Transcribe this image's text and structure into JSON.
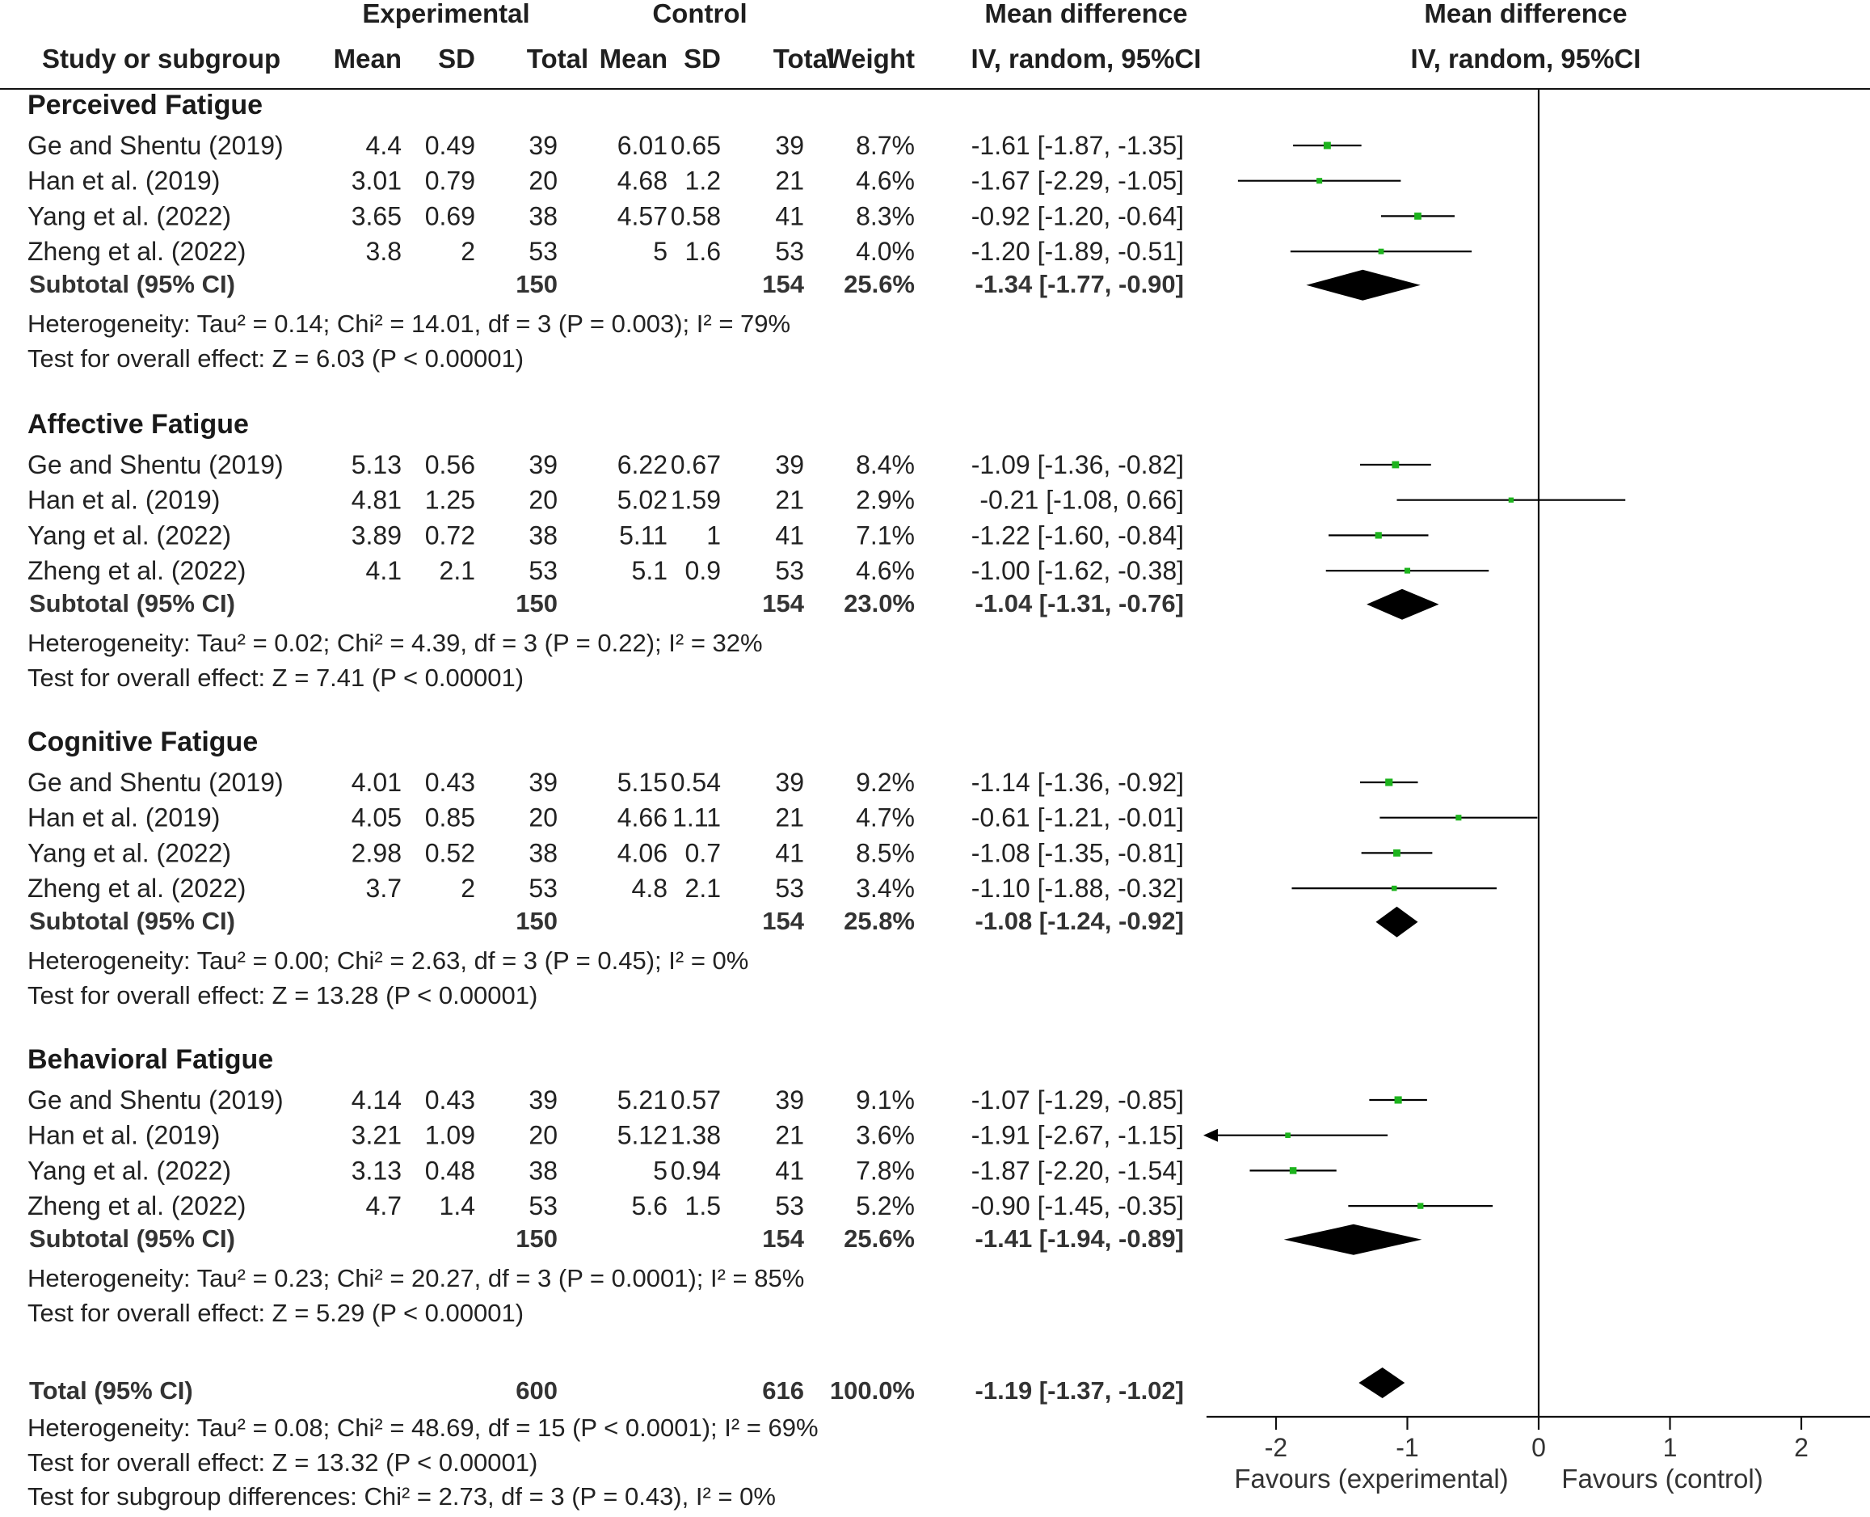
{
  "header": {
    "experimental": "Experimental",
    "control": "Control",
    "mean_difference": "Mean difference",
    "study_or_subgroup": "Study or subgroup",
    "mean": "Mean",
    "sd": "SD",
    "total": "Total",
    "weight": "Weight",
    "method": "IV, random, 95%CI"
  },
  "chart_data": {
    "type": "forest",
    "x_axis": {
      "ticks": [
        -2,
        -1,
        0,
        1,
        2
      ],
      "range": [
        -2.5,
        2.5
      ]
    },
    "favours_left": "Favours (experimental)",
    "favours_right": "Favours (control)",
    "groups": [
      {
        "name": "Perceived Fatigue",
        "studies": [
          {
            "study": "Ge and Shentu (2019)",
            "exp_mean": "4.4",
            "exp_sd": "0.49",
            "exp_total": "39",
            "ctl_mean": "6.01",
            "ctl_sd": "0.65",
            "ctl_total": "39",
            "weight": "8.7%",
            "md_text": "-1.61 [-1.87, -1.35]",
            "md": -1.61,
            "lo": -1.87,
            "hi": -1.35
          },
          {
            "study": "Han et al. (2019)",
            "exp_mean": "3.01",
            "exp_sd": "0.79",
            "exp_total": "20",
            "ctl_mean": "4.68",
            "ctl_sd": "1.2",
            "ctl_total": "21",
            "weight": "4.6%",
            "md_text": "-1.67 [-2.29, -1.05]",
            "md": -1.67,
            "lo": -2.29,
            "hi": -1.05
          },
          {
            "study": "Yang et al. (2022)",
            "exp_mean": "3.65",
            "exp_sd": "0.69",
            "exp_total": "38",
            "ctl_mean": "4.57",
            "ctl_sd": "0.58",
            "ctl_total": "41",
            "weight": "8.3%",
            "md_text": "-0.92 [-1.20, -0.64]",
            "md": -0.92,
            "lo": -1.2,
            "hi": -0.64
          },
          {
            "study": "Zheng et al. (2022)",
            "exp_mean": "3.8",
            "exp_sd": "2",
            "exp_total": "53",
            "ctl_mean": "5",
            "ctl_sd": "1.6",
            "ctl_total": "53",
            "weight": "4.0%",
            "md_text": "-1.20 [-1.89, -0.51]",
            "md": -1.2,
            "lo": -1.89,
            "hi": -0.51
          }
        ],
        "subtotal": {
          "label": "Subtotal (95% CI)",
          "exp_total": "150",
          "ctl_total": "154",
          "weight": "25.6%",
          "md_text": "-1.34 [-1.77, -0.90]",
          "md": -1.34,
          "lo": -1.77,
          "hi": -0.9
        },
        "heterogeneity": "Heterogeneity: Tau² = 0.14; Chi² = 14.01, df = 3 (P = 0.003); I² = 79%",
        "overall": "Test for overall effect: Z = 6.03 (P < 0.00001)"
      },
      {
        "name": "Affective Fatigue",
        "studies": [
          {
            "study": "Ge and Shentu (2019)",
            "exp_mean": "5.13",
            "exp_sd": "0.56",
            "exp_total": "39",
            "ctl_mean": "6.22",
            "ctl_sd": "0.67",
            "ctl_total": "39",
            "weight": "8.4%",
            "md_text": "-1.09 [-1.36, -0.82]",
            "md": -1.09,
            "lo": -1.36,
            "hi": -0.82
          },
          {
            "study": "Han et al. (2019)",
            "exp_mean": "4.81",
            "exp_sd": "1.25",
            "exp_total": "20",
            "ctl_mean": "5.02",
            "ctl_sd": "1.59",
            "ctl_total": "21",
            "weight": "2.9%",
            "md_text": "-0.21 [-1.08, 0.66]",
            "md": -0.21,
            "lo": -1.08,
            "hi": 0.66
          },
          {
            "study": "Yang et al. (2022)",
            "exp_mean": "3.89",
            "exp_sd": "0.72",
            "exp_total": "38",
            "ctl_mean": "5.11",
            "ctl_sd": "1",
            "ctl_total": "41",
            "weight": "7.1%",
            "md_text": "-1.22 [-1.60, -0.84]",
            "md": -1.22,
            "lo": -1.6,
            "hi": -0.84
          },
          {
            "study": "Zheng et al. (2022)",
            "exp_mean": "4.1",
            "exp_sd": "2.1",
            "exp_total": "53",
            "ctl_mean": "5.1",
            "ctl_sd": "0.9",
            "ctl_total": "53",
            "weight": "4.6%",
            "md_text": "-1.00 [-1.62, -0.38]",
            "md": -1.0,
            "lo": -1.62,
            "hi": -0.38
          }
        ],
        "subtotal": {
          "label": "Subtotal (95% CI)",
          "exp_total": "150",
          "ctl_total": "154",
          "weight": "23.0%",
          "md_text": "-1.04 [-1.31, -0.76]",
          "md": -1.04,
          "lo": -1.31,
          "hi": -0.76
        },
        "heterogeneity": "Heterogeneity: Tau² = 0.02; Chi² = 4.39, df = 3 (P = 0.22); I² = 32%",
        "overall": "Test for overall effect: Z = 7.41 (P < 0.00001)"
      },
      {
        "name": "Cognitive Fatigue",
        "studies": [
          {
            "study": "Ge and Shentu (2019)",
            "exp_mean": "4.01",
            "exp_sd": "0.43",
            "exp_total": "39",
            "ctl_mean": "5.15",
            "ctl_sd": "0.54",
            "ctl_total": "39",
            "weight": "9.2%",
            "md_text": "-1.14 [-1.36, -0.92]",
            "md": -1.14,
            "lo": -1.36,
            "hi": -0.92
          },
          {
            "study": "Han et al. (2019)",
            "exp_mean": "4.05",
            "exp_sd": "0.85",
            "exp_total": "20",
            "ctl_mean": "4.66",
            "ctl_sd": "1.11",
            "ctl_total": "21",
            "weight": "4.7%",
            "md_text": "-0.61 [-1.21, -0.01]",
            "md": -0.61,
            "lo": -1.21,
            "hi": -0.01
          },
          {
            "study": "Yang et al. (2022)",
            "exp_mean": "2.98",
            "exp_sd": "0.52",
            "exp_total": "38",
            "ctl_mean": "4.06",
            "ctl_sd": "0.7",
            "ctl_total": "41",
            "weight": "8.5%",
            "md_text": "-1.08 [-1.35, -0.81]",
            "md": -1.08,
            "lo": -1.35,
            "hi": -0.81
          },
          {
            "study": "Zheng et al. (2022)",
            "exp_mean": "3.7",
            "exp_sd": "2",
            "exp_total": "53",
            "ctl_mean": "4.8",
            "ctl_sd": "2.1",
            "ctl_total": "53",
            "weight": "3.4%",
            "md_text": "-1.10 [-1.88, -0.32]",
            "md": -1.1,
            "lo": -1.88,
            "hi": -0.32
          }
        ],
        "subtotal": {
          "label": "Subtotal (95% CI)",
          "exp_total": "150",
          "ctl_total": "154",
          "weight": "25.8%",
          "md_text": "-1.08 [-1.24, -0.92]",
          "md": -1.08,
          "lo": -1.24,
          "hi": -0.92
        },
        "heterogeneity": "Heterogeneity: Tau² = 0.00; Chi² = 2.63, df = 3 (P = 0.45); I² = 0%",
        "overall": "Test for overall effect: Z = 13.28 (P < 0.00001)"
      },
      {
        "name": "Behavioral Fatigue",
        "studies": [
          {
            "study": "Ge and Shentu (2019)",
            "exp_mean": "4.14",
            "exp_sd": "0.43",
            "exp_total": "39",
            "ctl_mean": "5.21",
            "ctl_sd": "0.57",
            "ctl_total": "39",
            "weight": "9.1%",
            "md_text": "-1.07 [-1.29, -0.85]",
            "md": -1.07,
            "lo": -1.29,
            "hi": -0.85
          },
          {
            "study": "Han et al. (2019)",
            "exp_mean": "3.21",
            "exp_sd": "1.09",
            "exp_total": "20",
            "ctl_mean": "5.12",
            "ctl_sd": "1.38",
            "ctl_total": "21",
            "weight": "3.6%",
            "md_text": "-1.91 [-2.67, -1.15]",
            "md": -1.91,
            "lo": -2.67,
            "hi": -1.15
          },
          {
            "study": "Yang et al. (2022)",
            "exp_mean": "3.13",
            "exp_sd": "0.48",
            "exp_total": "38",
            "ctl_mean": "5",
            "ctl_sd": "0.94",
            "ctl_total": "41",
            "weight": "7.8%",
            "md_text": "-1.87 [-2.20, -1.54]",
            "md": -1.87,
            "lo": -2.2,
            "hi": -1.54
          },
          {
            "study": "Zheng et al. (2022)",
            "exp_mean": "4.7",
            "exp_sd": "1.4",
            "exp_total": "53",
            "ctl_mean": "5.6",
            "ctl_sd": "1.5",
            "ctl_total": "53",
            "weight": "5.2%",
            "md_text": "-0.90 [-1.45, -0.35]",
            "md": -0.9,
            "lo": -1.45,
            "hi": -0.35
          }
        ],
        "subtotal": {
          "label": "Subtotal (95% CI)",
          "exp_total": "150",
          "ctl_total": "154",
          "weight": "25.6%",
          "md_text": "-1.41 [-1.94, -0.89]",
          "md": -1.41,
          "lo": -1.94,
          "hi": -0.89
        },
        "heterogeneity": "Heterogeneity: Tau² = 0.23; Chi² = 20.27, df = 3 (P = 0.0001); I² = 85%",
        "overall": "Test for overall effect: Z = 5.29 (P < 0.00001)"
      }
    ],
    "total": {
      "label": "Total (95% CI)",
      "exp_total": "600",
      "ctl_total": "616",
      "weight": "100.0%",
      "md_text": "-1.19 [-1.37, -1.02]",
      "md": -1.19,
      "lo": -1.37,
      "hi": -1.02,
      "heterogeneity": "Heterogeneity: Tau² = 0.08; Chi² = 48.69, df = 15 (P < 0.0001); I² = 69%",
      "overall": "Test for overall effect: Z = 13.32 (P < 0.00001)",
      "subgroup": "Test for subgroup differences: Chi² = 2.73, df = 3 (P = 0.43), I² = 0%"
    },
    "colors": {
      "point": "#1db31d",
      "diamond": "#000000",
      "line": "#000000"
    }
  }
}
